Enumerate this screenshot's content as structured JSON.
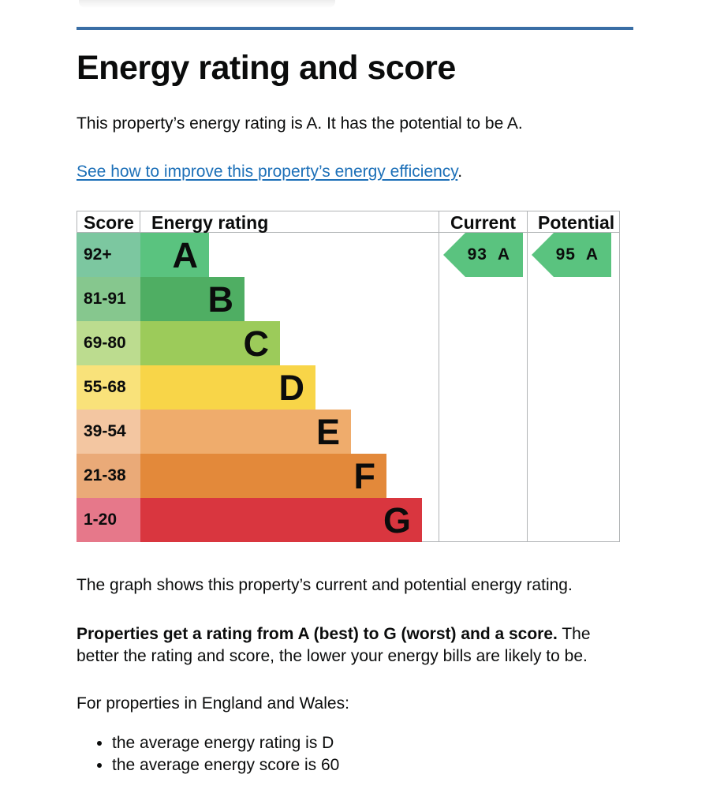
{
  "page": {
    "title": "Energy rating and score",
    "intro": "This property’s energy rating is A. It has the potential to be A.",
    "improve_link": "See how to improve this property’s energy efficiency",
    "improve_link_suffix": ".",
    "after_graph": "The graph shows this property’s current and potential energy rating.",
    "properties_bold": "Properties get a rating from A (best) to G (worst) and a score.",
    "properties_rest": " The better the rating and score, the lower your energy bills are likely to be.",
    "england_wales": "For properties in England and Wales:",
    "averages": [
      "the average energy rating is D",
      "the average energy score is 60"
    ]
  },
  "graph": {
    "headers": {
      "score": "Score",
      "rating": "Energy rating",
      "current": "Current",
      "potential": "Potential"
    },
    "bands": [
      {
        "letter": "A",
        "range": "92+",
        "color": "#5ac37f",
        "score_bg": "#7cc7a0"
      },
      {
        "letter": "B",
        "range": "81-91",
        "color": "#4fae63",
        "score_bg": "#86c78e"
      },
      {
        "letter": "C",
        "range": "69-80",
        "color": "#9ccb5a",
        "score_bg": "#bcdc8f"
      },
      {
        "letter": "D",
        "range": "55-68",
        "color": "#f8d548",
        "score_bg": "#f9e27a"
      },
      {
        "letter": "E",
        "range": "39-54",
        "color": "#efac6c",
        "score_bg": "#f3c6a1"
      },
      {
        "letter": "F",
        "range": "21-38",
        "color": "#e3893a",
        "score_bg": "#eaaa78"
      },
      {
        "letter": "G",
        "range": "1-20",
        "color": "#d9363f",
        "score_bg": "#e6788a"
      }
    ],
    "current": {
      "score": "93",
      "letter": "A",
      "color": "#5ac37f"
    },
    "potential": {
      "score": "95",
      "letter": "A",
      "color": "#5ac37f"
    }
  }
}
